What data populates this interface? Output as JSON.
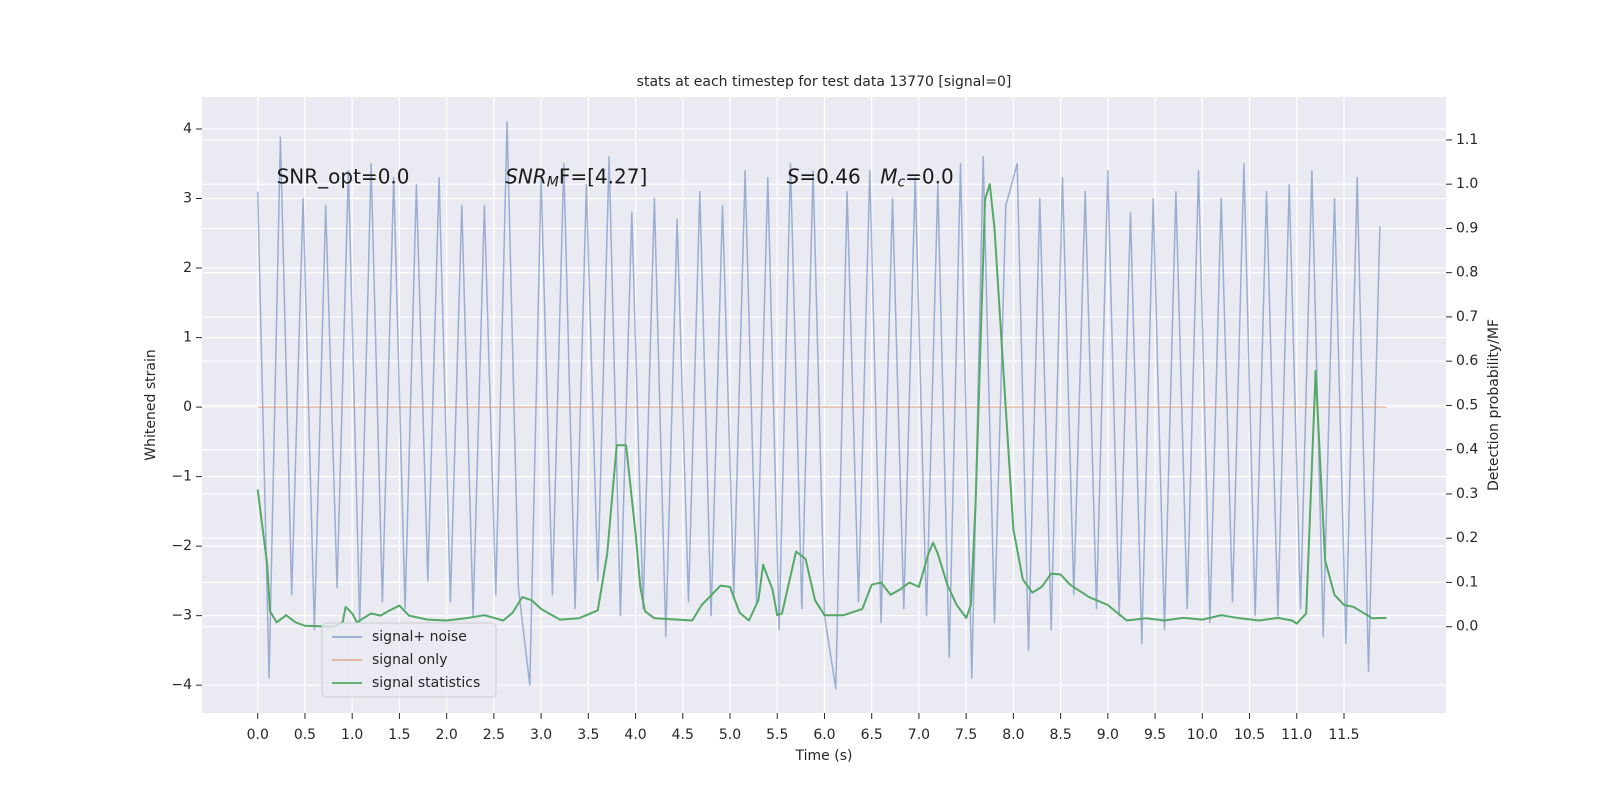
{
  "chart_data": {
    "type": "line",
    "title": "stats at each timestep for test data 13770 [signal=0]",
    "xlabel": "Time (s)",
    "ylabel": "Whitened strain",
    "y2label": "Detection probability/MF",
    "xlim": [
      -0.59,
      12.58
    ],
    "ylim": [
      -4.4,
      4.46
    ],
    "y2lim": [
      -0.195,
      1.197
    ],
    "grid": true,
    "legend": "lower left",
    "xticks": [
      {
        "value": 0,
        "label": "0.0"
      },
      0.5,
      {
        "value": 1,
        "label": "1.0"
      },
      1.5,
      {
        "value": 2,
        "label": "2.0"
      },
      2.5,
      {
        "value": 3,
        "label": "3.0"
      },
      3.5,
      {
        "value": 4,
        "label": "4.0"
      },
      4.5,
      {
        "value": 5,
        "label": "5.0"
      },
      5.5,
      {
        "value": 6,
        "label": "6.0"
      },
      6.5,
      {
        "value": 7,
        "label": "7.0"
      },
      7.5,
      {
        "value": 8,
        "label": "8.0"
      },
      8.5,
      {
        "value": 9,
        "label": "9.0"
      },
      9.5,
      {
        "value": 10,
        "label": "10.0"
      },
      10.5,
      {
        "value": 11,
        "label": "11.0"
      },
      11.5
    ],
    "yticks": [
      {
        "value": -4,
        "label": "−4"
      },
      {
        "value": -3,
        "label": "−3"
      },
      {
        "value": -2,
        "label": "−2"
      },
      {
        "value": -1,
        "label": "−1"
      },
      0,
      1,
      2,
      3,
      4
    ],
    "y2ticks": [
      {
        "value": 0,
        "label": "0.0"
      },
      0.1,
      0.2,
      0.3,
      0.4,
      0.5,
      0.6,
      0.7,
      0.8,
      0.9,
      {
        "value": 1,
        "label": "1.0"
      },
      1.1
    ],
    "annotations": [
      {
        "text": "SNR_opt=0.0"
      },
      {
        "italic": "SNR",
        "sub": "M",
        "text": "F=[4.27]"
      },
      {
        "italic": "S",
        "text": "=0.46"
      },
      {
        "italic": "M",
        "sub": "c",
        "text": "=0.0"
      }
    ],
    "series": [
      {
        "name": "signal+ noise",
        "color": "#4c72b0",
        "x": [
          0.0,
          0.12,
          0.24,
          0.36,
          0.48,
          0.6,
          0.72,
          0.84,
          0.96,
          1.08,
          1.2,
          1.32,
          1.44,
          1.56,
          1.68,
          1.8,
          1.92,
          2.04,
          2.16,
          2.28,
          2.4,
          2.52,
          2.64,
          2.76,
          2.88,
          3.0,
          3.12,
          3.24,
          3.36,
          3.48,
          3.6,
          3.72,
          3.84,
          3.96,
          4.08,
          4.2,
          4.32,
          4.44,
          4.56,
          4.68,
          4.8,
          4.92,
          5.04,
          5.16,
          5.28,
          5.4,
          5.52,
          5.64,
          5.76,
          5.88,
          6.0,
          6.12,
          6.24,
          6.36,
          6.48,
          6.6,
          6.72,
          6.84,
          6.96,
          7.08,
          7.2,
          7.32,
          7.44,
          7.56,
          7.68,
          7.8,
          7.92,
          8.04,
          8.16,
          8.28,
          8.4,
          8.52,
          8.64,
          8.76,
          8.88,
          9.0,
          9.12,
          9.24,
          9.36,
          9.48,
          9.6,
          9.72,
          9.84,
          9.96,
          10.08,
          10.2,
          10.32,
          10.44,
          10.56,
          10.68,
          10.8,
          10.92,
          11.04,
          11.16,
          11.28,
          11.4,
          11.52,
          11.64,
          11.76,
          11.88
        ],
        "values": [
          3.1,
          -3.9,
          3.88,
          -2.7,
          3.0,
          -3.2,
          2.9,
          -2.6,
          3.4,
          -3.1,
          3.5,
          -2.8,
          3.3,
          -2.9,
          3.2,
          -2.5,
          3.3,
          -2.8,
          2.9,
          -3.0,
          2.9,
          -2.7,
          4.1,
          -2.6,
          -4.0,
          3.3,
          -2.7,
          3.5,
          -2.9,
          3.2,
          -2.5,
          3.6,
          -3.0,
          2.8,
          -2.9,
          3.0,
          -3.3,
          2.7,
          -2.8,
          3.1,
          -3.0,
          2.9,
          -2.7,
          3.4,
          -2.8,
          3.3,
          -3.2,
          3.5,
          -2.9,
          3.4,
          -3.0,
          -4.05,
          3.1,
          -2.8,
          3.4,
          -3.1,
          3.0,
          -2.9,
          3.3,
          -3.0,
          3.2,
          -3.6,
          3.5,
          -3.9,
          3.6,
          -3.1,
          2.9,
          3.5,
          -3.5,
          3.0,
          -3.2,
          3.3,
          -2.7,
          3.1,
          -2.9,
          3.4,
          -3.0,
          2.8,
          -3.4,
          3.0,
          -3.2,
          3.1,
          -2.9,
          3.4,
          -3.1,
          3.0,
          -2.8,
          3.5,
          -3.0,
          3.1,
          -3.0,
          3.2,
          -2.9,
          3.4,
          -3.3,
          3.0,
          -3.4,
          3.3,
          -3.8,
          2.6
        ],
        "lw": 1.5
      },
      {
        "name": "signal only",
        "color": "#dd8452",
        "x": [
          0,
          11.95
        ],
        "values": [
          0,
          0
        ],
        "lw": 1.2
      },
      {
        "name": "signal statistics",
        "color": "#55a868",
        "axis": "y2",
        "lw": 2,
        "x": [
          0.0,
          0.1,
          0.13,
          0.2,
          0.3,
          0.4,
          0.5,
          0.8,
          0.9,
          0.93,
          1.0,
          1.05,
          1.2,
          1.3,
          1.4,
          1.5,
          1.6,
          1.8,
          2.0,
          2.2,
          2.4,
          2.6,
          2.7,
          2.8,
          2.9,
          3.0,
          3.2,
          3.4,
          3.6,
          3.7,
          3.8,
          3.9,
          4.0,
          4.05,
          4.1,
          4.2,
          4.6,
          4.7,
          4.9,
          5.0,
          5.1,
          5.2,
          5.3,
          5.35,
          5.45,
          5.5,
          5.55,
          5.7,
          5.8,
          5.9,
          6.0,
          6.2,
          6.4,
          6.5,
          6.6,
          6.7,
          6.8,
          6.9,
          7.0,
          7.1,
          7.15,
          7.2,
          7.3,
          7.4,
          7.5,
          7.55,
          7.6,
          7.7,
          7.75,
          7.8,
          7.9,
          8.0,
          8.1,
          8.2,
          8.3,
          8.4,
          8.5,
          8.6,
          8.8,
          9.0,
          9.2,
          9.4,
          9.6,
          9.8,
          10.0,
          10.2,
          10.4,
          10.6,
          10.8,
          10.95,
          11.0,
          11.1,
          11.2,
          11.3,
          11.4,
          11.5,
          11.6,
          11.8,
          11.95
        ],
        "values": [
          0.31,
          0.14,
          0.035,
          0.01,
          0.026,
          0.01,
          0.002,
          0.0,
          0.01,
          0.045,
          0.03,
          0.01,
          0.03,
          0.025,
          0.037,
          0.048,
          0.025,
          0.016,
          0.014,
          0.019,
          0.026,
          0.014,
          0.032,
          0.067,
          0.06,
          0.04,
          0.016,
          0.019,
          0.037,
          0.165,
          0.41,
          0.41,
          0.21,
          0.09,
          0.035,
          0.019,
          0.014,
          0.049,
          0.093,
          0.09,
          0.032,
          0.014,
          0.06,
          0.14,
          0.084,
          0.026,
          0.03,
          0.17,
          0.153,
          0.06,
          0.026,
          0.026,
          0.04,
          0.095,
          0.1,
          0.072,
          0.084,
          0.1,
          0.09,
          0.165,
          0.19,
          0.165,
          0.095,
          0.049,
          0.02,
          0.049,
          0.28,
          0.965,
          1.0,
          0.9,
          0.56,
          0.22,
          0.107,
          0.077,
          0.09,
          0.12,
          0.118,
          0.095,
          0.067,
          0.049,
          0.014,
          0.019,
          0.014,
          0.02,
          0.016,
          0.026,
          0.019,
          0.014,
          0.02,
          0.014,
          0.007,
          0.03,
          0.578,
          0.15,
          0.072,
          0.049,
          0.045,
          0.019,
          0.02
        ]
      }
    ]
  }
}
